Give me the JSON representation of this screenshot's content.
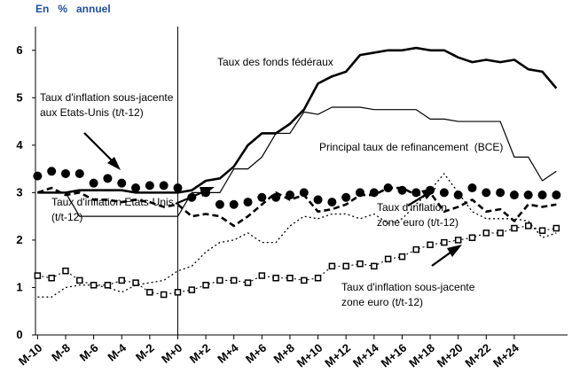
{
  "chart_data": {
    "type": "line",
    "title": "En   %   annuel",
    "x": [
      -10,
      -9,
      -8,
      -7,
      -6,
      -5,
      -4,
      -3,
      -2,
      -1,
      0,
      1,
      2,
      3,
      4,
      5,
      6,
      7,
      8,
      9,
      10,
      11,
      12,
      13,
      14,
      15,
      16,
      17,
      18,
      19,
      20,
      21,
      22,
      23,
      24,
      25,
      26,
      27
    ],
    "xlim": [
      -10.15,
      27.8
    ],
    "xticks": [
      {
        "value": -10,
        "label": "M-10"
      },
      {
        "value": -8,
        "label": "M-8"
      },
      {
        "value": -6,
        "label": "M-6"
      },
      {
        "value": -4,
        "label": "M-4"
      },
      {
        "value": -2,
        "label": "M-2"
      },
      {
        "value": 0,
        "label": "M+0"
      },
      {
        "value": 2,
        "label": "M+2"
      },
      {
        "value": 4,
        "label": "M+4"
      },
      {
        "value": 6,
        "label": "M+6"
      },
      {
        "value": 8,
        "label": "M+8"
      },
      {
        "value": 10,
        "label": "M+10"
      },
      {
        "value": 12,
        "label": "M+12"
      },
      {
        "value": 14,
        "label": "M+14"
      },
      {
        "value": 16,
        "label": "M+16"
      },
      {
        "value": 18,
        "label": "M+18"
      },
      {
        "value": 20,
        "label": "M+20"
      },
      {
        "value": 22,
        "label": "M+22"
      },
      {
        "value": 24,
        "label": "M+24"
      }
    ],
    "ylim": [
      0,
      6.5
    ],
    "yticks": [
      0,
      1,
      2,
      3,
      4,
      5,
      6
    ],
    "grid": false,
    "reference_x": 0,
    "series": [
      {
        "label": [
          "Taux des fonds fédéraux"
        ],
        "color": "#000000",
        "style": "solid",
        "width": 2.6,
        "marker": null,
        "values": [
          3.0,
          3.0,
          3.0,
          3.05,
          3.05,
          3.05,
          3.05,
          3.0,
          3.0,
          3.0,
          3.0,
          3.05,
          3.25,
          3.3,
          3.55,
          4.0,
          4.25,
          4.25,
          4.45,
          4.75,
          5.3,
          5.45,
          5.55,
          5.9,
          5.95,
          6.0,
          6.0,
          6.05,
          6.0,
          6.0,
          5.85,
          5.75,
          5.8,
          5.75,
          5.8,
          5.6,
          5.55,
          5.2
        ]
      },
      {
        "label": [
          "Principal taux de refinancement  (BCE)"
        ],
        "color": "#000000",
        "style": "solid",
        "width": 1.2,
        "marker": null,
        "values": [
          3.0,
          3.0,
          3.0,
          2.5,
          2.5,
          2.5,
          2.5,
          2.5,
          2.5,
          2.5,
          2.5,
          3.0,
          3.0,
          3.0,
          3.5,
          3.5,
          3.75,
          4.25,
          4.25,
          4.7,
          4.65,
          4.8,
          4.8,
          4.8,
          4.75,
          4.75,
          4.75,
          4.75,
          4.55,
          4.55,
          4.5,
          4.5,
          4.5,
          4.5,
          3.75,
          3.75,
          3.25,
          3.45
        ]
      },
      {
        "label": [
          "Taux d'inflation sous-jacente",
          "aux Etats-Unis (t/t-12)"
        ],
        "color": "#000000",
        "style": "none",
        "width": 0,
        "marker": "circle",
        "values": [
          3.35,
          3.45,
          3.4,
          3.4,
          3.2,
          3.3,
          3.2,
          3.1,
          3.15,
          3.15,
          3.1,
          2.9,
          3.0,
          2.75,
          2.75,
          2.8,
          2.9,
          2.9,
          2.95,
          3.0,
          2.85,
          2.8,
          2.9,
          3.0,
          3.0,
          3.1,
          3.05,
          3.0,
          3.05,
          3.0,
          2.95,
          3.1,
          3.0,
          3.0,
          2.95,
          2.95,
          2.95,
          2.95
        ]
      },
      {
        "label": [
          "Taux d'inflation Etats-Unis",
          "(t/t-12)"
        ],
        "color": "#000000",
        "style": "dashed",
        "width": 2.6,
        "marker": null,
        "values": [
          3.0,
          3.1,
          2.95,
          3.0,
          2.85,
          2.85,
          2.8,
          2.85,
          2.8,
          2.7,
          2.75,
          2.5,
          2.55,
          2.5,
          2.3,
          2.5,
          2.75,
          3.0,
          2.85,
          2.95,
          2.6,
          2.65,
          2.75,
          2.95,
          2.95,
          3.1,
          3.1,
          2.95,
          3.0,
          2.6,
          2.7,
          2.85,
          2.6,
          2.65,
          2.4,
          2.75,
          2.7,
          2.75
        ]
      },
      {
        "label": [
          "Taux d'inflation",
          "zone euro (t/t-12)"
        ],
        "color": "#000000",
        "style": "dotted",
        "width": 1.3,
        "marker": null,
        "values": [
          0.8,
          0.8,
          1.0,
          1.05,
          1.05,
          1.0,
          0.9,
          1.05,
          1.1,
          1.15,
          1.35,
          1.45,
          1.75,
          1.95,
          2.0,
          2.15,
          1.95,
          1.95,
          2.3,
          2.5,
          2.45,
          2.55,
          2.55,
          2.45,
          2.55,
          2.35,
          2.45,
          2.75,
          3.05,
          3.4,
          3.0,
          2.6,
          2.45,
          2.45,
          2.45,
          2.4,
          2.05,
          2.15
        ]
      },
      {
        "label": [
          "Taux d'inflation sous-jacente",
          "zone euro (t/t-12)"
        ],
        "color": "#000000",
        "style": "dotted",
        "width": 1.1,
        "marker": "square",
        "values": [
          1.25,
          1.2,
          1.35,
          1.15,
          1.05,
          1.05,
          1.15,
          1.1,
          0.9,
          0.85,
          0.9,
          0.95,
          1.05,
          1.15,
          1.15,
          1.1,
          1.25,
          1.2,
          1.2,
          1.15,
          1.2,
          1.45,
          1.45,
          1.5,
          1.45,
          1.6,
          1.65,
          1.8,
          1.9,
          1.95,
          2.0,
          2.05,
          2.15,
          2.15,
          2.25,
          2.3,
          2.2,
          2.25
        ]
      }
    ]
  }
}
